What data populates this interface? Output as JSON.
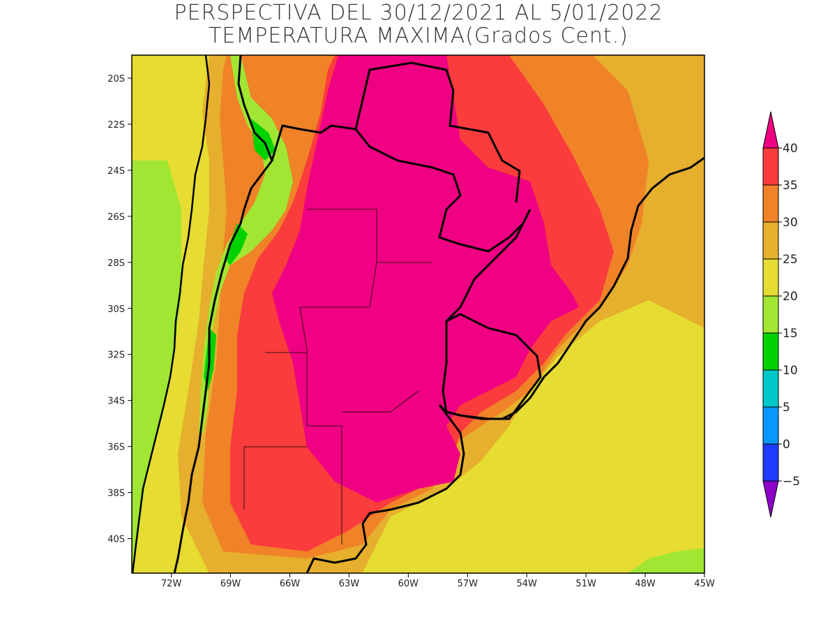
{
  "title": {
    "line1": "PERSPECTIVA DEL 30/12/2021 AL 5/01/2022",
    "line2": "TEMPERATURA MAXIMA(Grados Cent.)"
  },
  "map": {
    "lon_range": [
      -74,
      -45
    ],
    "lat_range": [
      -41.5,
      -19
    ],
    "lat_ticks": [
      -20,
      -22,
      -24,
      -26,
      -28,
      -30,
      -32,
      -34,
      -36,
      -38,
      -40
    ],
    "lat_tick_labels": [
      "20S",
      "22S",
      "24S",
      "26S",
      "28S",
      "30S",
      "32S",
      "34S",
      "36S",
      "38S",
      "40S"
    ],
    "lon_ticks": [
      -72,
      -69,
      -66,
      -63,
      -60,
      -57,
      -54,
      -51,
      -48,
      -45
    ],
    "lon_tick_labels": [
      "72W",
      "69W",
      "66W",
      "63W",
      "60W",
      "57W",
      "54W",
      "51W",
      "48W",
      "45W"
    ]
  },
  "colorbar": {
    "bins": [
      {
        "color": "#8e00c8"
      },
      {
        "color": "#1e3cff",
        "upper": "0"
      },
      {
        "color": "#0a96ff",
        "upper": "5"
      },
      {
        "color": "#00c8c8",
        "upper": "10"
      },
      {
        "color": "#00d200",
        "upper": "15"
      },
      {
        "color": "#a0e632",
        "upper": "20"
      },
      {
        "color": "#e6dc32",
        "upper": "25"
      },
      {
        "color": "#e6af2d",
        "upper": "30"
      },
      {
        "color": "#f08228",
        "upper": "35"
      },
      {
        "color": "#fa3c3c",
        "upper": "40"
      },
      {
        "color": "#f00082"
      }
    ],
    "bottom_label": "−5"
  },
  "colors": {
    "c15": "#a0e632",
    "c20": "#e6dc32",
    "c25": "#e6af2d",
    "c30": "#f08228",
    "c35": "#fa3c3c",
    "c40": "#f00082"
  }
}
